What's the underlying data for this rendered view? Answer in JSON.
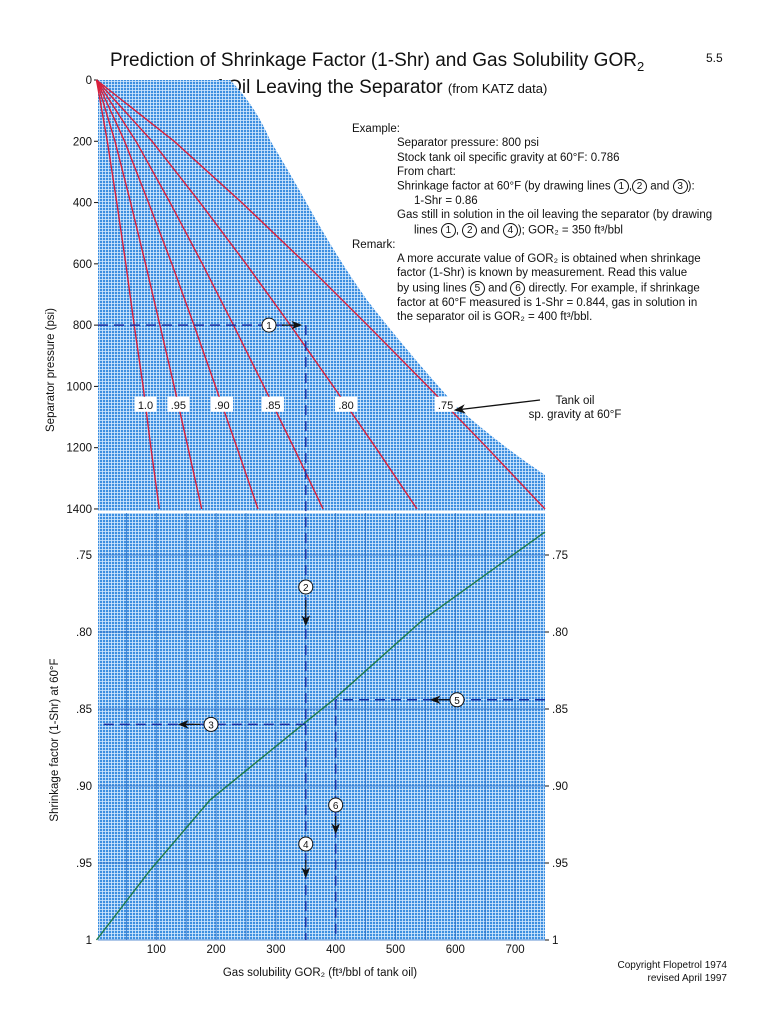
{
  "page_number": "5.5",
  "title_line1": "Prediction of Shrinkage Factor (1-Shr) and Gas Solubility GOR",
  "title_sub": "2",
  "title_line2": "of Oil Leaving the Separator",
  "title_note": "(from KATZ data)",
  "example": {
    "heading": "Example:",
    "line1": "Separator pressure: 800 psi",
    "line2": "Stock tank oil specific gravity at 60°F: 0.786",
    "line3": "From chart:",
    "line4a": "Shrinkage factor at 60°F (by drawing lines ",
    "line4b": "):",
    "line5": "1-Shr = 0.86",
    "line6": "Gas still in solution in the oil leaving the separator (by drawing",
    "line7a": "lines ",
    "line7b": "); GOR₂ = 350 ft³/bbl",
    "and": "and",
    "remark_heading": "Remark:",
    "remark1": "A more accurate value of GOR₂ is obtained when shrinkage",
    "remark2": "factor (1-Shr) is known by measurement. Read this value",
    "remark3a": "by using lines ",
    "remark3b": " directly. For example, if shrinkage",
    "remark4": "factor at 60°F measured is 1-Shr = 0.844, gas in solution in",
    "remark5": "the separator oil is GOR₂ = 400 ft³/bbl."
  },
  "tank_oil_annotation": [
    "Tank oil",
    "sp. gravity at 60°F"
  ],
  "copyright": [
    "Copyright Flopetrol 1974",
    "revised April 1997"
  ],
  "markers": [
    "1",
    "2",
    "3",
    "4",
    "5",
    "6"
  ],
  "colors": {
    "grid_bg": "#3d8fe0",
    "grid_line": "#ffffff",
    "gravity_curves": "#d8203c",
    "shrinkage_curve": "#1f7a4a",
    "construction_lines": "#1a2fa0"
  },
  "chart_data": [
    {
      "type": "line",
      "panel": "top",
      "xlabel": "Gas solubility GOR₂ (ft³/bbl of tank oil)",
      "ylabel": "Separator pressure (psi)",
      "xlim": [
        0,
        750
      ],
      "ylim": [
        1400,
        0
      ],
      "x_ticks": [
        "100",
        "200",
        "300",
        "400",
        "500",
        "600",
        "700"
      ],
      "y_ticks": [
        "0",
        "200",
        "400",
        "600",
        "800",
        "1000",
        "1200",
        "1400"
      ],
      "grid": true,
      "pressure_points": [
        0,
        200,
        400,
        600,
        800,
        1000,
        1200,
        1400
      ],
      "series": [
        {
          "name": "1.0",
          "gor": [
            0,
            18,
            34,
            49,
            63,
            78,
            91,
            105
          ]
        },
        {
          "name": ".95",
          "gor": [
            0,
            31,
            57,
            82,
            106,
            130,
            153,
            176
          ]
        },
        {
          "name": ".90",
          "gor": [
            0,
            47,
            87,
            126,
            163,
            199,
            235,
            270
          ]
        },
        {
          "name": ".85",
          "gor": [
            0,
            66,
            123,
            177,
            229,
            280,
            330,
            379
          ]
        },
        {
          "name": ".80",
          "gor": [
            0,
            93,
            173,
            250,
            324,
            396,
            467,
            536
          ]
        },
        {
          "name": ".75",
          "gor": [
            0,
            130,
            243,
            350,
            453,
            554,
            653,
            750
          ]
        }
      ]
    },
    {
      "type": "line",
      "panel": "bottom",
      "xlabel": "Gas solubility GOR₂ (ft³/bbl of tank oil)",
      "ylabel": "Shrinkage factor (1-Shr) at 60°F",
      "xlim": [
        0,
        750
      ],
      "ylim": [
        0.72,
        1.0
      ],
      "y_ticks": [
        ".75",
        ".80",
        ".85",
        ".90",
        ".95",
        "1"
      ],
      "grid": true,
      "x": [
        0,
        89,
        190,
        345,
        396,
        546,
        750
      ],
      "y": [
        1.0,
        0.955,
        0.909,
        0.86,
        0.844,
        0.792,
        0.735
      ]
    }
  ],
  "example_construction": {
    "pressure_psi": 800,
    "gor": 350,
    "shrinkage": 0.86,
    "measured_shrinkage": 0.844,
    "gor_from_measured": 400
  }
}
